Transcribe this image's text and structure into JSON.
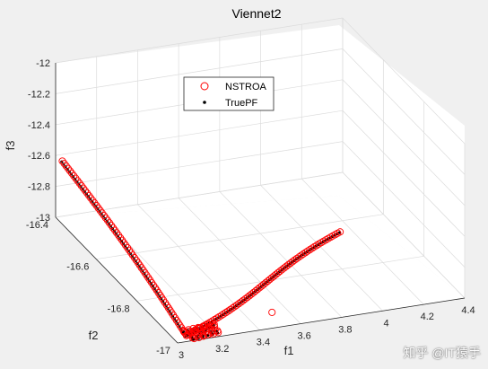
{
  "chart_data": {
    "type": "scatter",
    "title": "Viennet2",
    "xlabel": "f1",
    "ylabel": "f2",
    "zlabel": "f3",
    "xlim": [
      3,
      4.4
    ],
    "ylim": [
      -17,
      -16.4
    ],
    "zlim": [
      -13,
      -12
    ],
    "xticks": [
      "3",
      "3.2",
      "3.4",
      "3.6",
      "3.8",
      "4",
      "4.2",
      "4.4"
    ],
    "yticks": [
      "-17",
      "-16.8",
      "-16.6",
      "-16.4"
    ],
    "zticks": [
      "-13",
      "-12.8",
      "-12.6",
      "-12.4",
      "-12.2",
      "-12"
    ],
    "grid": true,
    "legend_position": "top-center",
    "series": [
      {
        "name": "NSTROA",
        "marker": "open-circle",
        "color": "#ff0000",
        "description_points_ref": "f1/f2/f3 samples along front"
      },
      {
        "name": "TruePF",
        "marker": "dot",
        "color": "#000000"
      }
    ],
    "front": {
      "arm1": {
        "from": {
          "f1": 3.0,
          "f2": -16.43,
          "f3": -12.6
        },
        "to": {
          "f1": 3.05,
          "f2": -16.99,
          "f3": -12.98
        }
      },
      "arm2": {
        "from": {
          "f1": 3.05,
          "f2": -16.99,
          "f3": -12.98
        },
        "to": {
          "f1": 4.05,
          "f2": -16.74,
          "f3": -12.86
        }
      }
    }
  },
  "watermark": "知乎 @IT猿手"
}
